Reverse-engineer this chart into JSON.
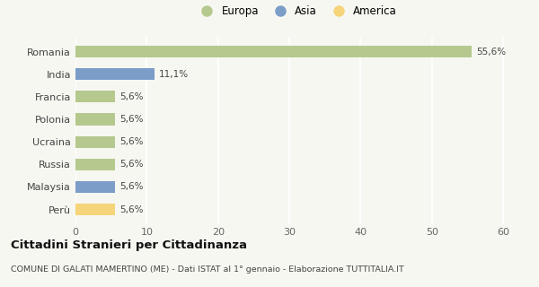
{
  "categories": [
    "Romania",
    "India",
    "Francia",
    "Polonia",
    "Ucraina",
    "Russia",
    "Malaysia",
    "Perù"
  ],
  "values": [
    55.6,
    11.1,
    5.6,
    5.6,
    5.6,
    5.6,
    5.6,
    5.6
  ],
  "labels": [
    "55,6%",
    "11,1%",
    "5,6%",
    "5,6%",
    "5,6%",
    "5,6%",
    "5,6%",
    "5,6%"
  ],
  "colors": [
    "#b5c98e",
    "#7b9dc7",
    "#b5c98e",
    "#b5c98e",
    "#b5c98e",
    "#b5c98e",
    "#7b9dc7",
    "#f5d47a"
  ],
  "legend_labels": [
    "Europa",
    "Asia",
    "America"
  ],
  "legend_colors": [
    "#b5c98e",
    "#7b9dc7",
    "#f5d47a"
  ],
  "xlim": [
    0,
    62
  ],
  "xticks": [
    0,
    10,
    20,
    30,
    40,
    50,
    60
  ],
  "title": "Cittadini Stranieri per Cittadinanza",
  "subtitle": "COMUNE DI GALATI MAMERTINO (ME) - Dati ISTAT al 1° gennaio - Elaborazione TUTTITALIA.IT",
  "bg_color": "#f7f7f2",
  "grid_color": "#ffffff",
  "bar_height": 0.52
}
